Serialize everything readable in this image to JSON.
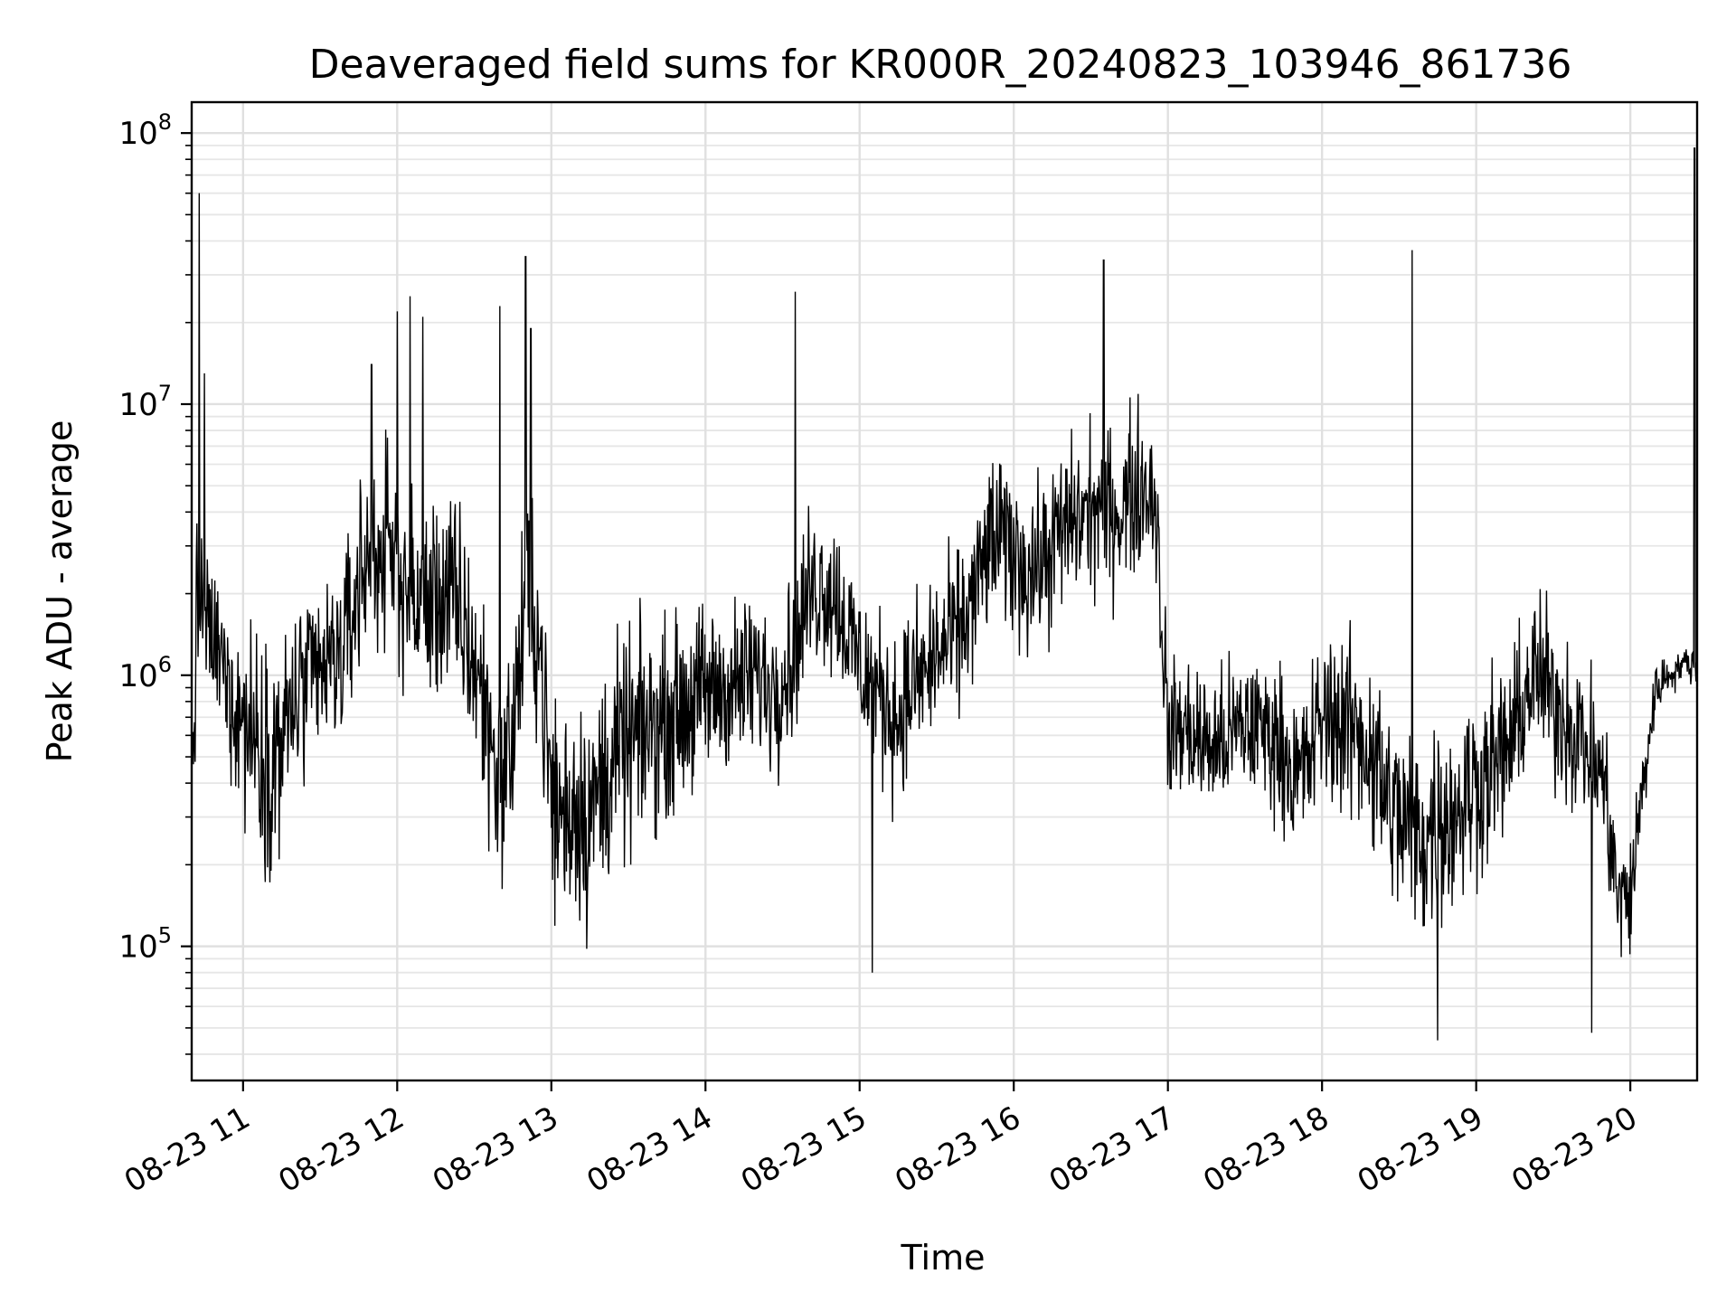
{
  "chart_data": {
    "type": "line",
    "title": "Deaveraged field sums for KR000R_20240823_103946_861736",
    "xlabel": "Time",
    "ylabel": "Peak ADU - average",
    "yscale": "log",
    "ylim": [
      32000,
      130000000
    ],
    "xlim": [
      "2024-08-23 10:40",
      "2024-08-23 20:26"
    ],
    "grid": true,
    "line_color": "#000000",
    "x_tick_labels": [
      "08-23 11",
      "08-23 12",
      "08-23 13",
      "08-23 14",
      "08-23 15",
      "08-23 16",
      "08-23 17",
      "08-23 18",
      "08-23 19",
      "08-23 20"
    ],
    "y_tick_labels": [
      {
        "base": "10",
        "exp": "5",
        "value": 100000
      },
      {
        "base": "10",
        "exp": "6",
        "value": 1000000
      },
      {
        "base": "10",
        "exp": "7",
        "value": 10000000
      },
      {
        "base": "10",
        "exp": "8",
        "value": 100000000
      }
    ],
    "series": [
      {
        "x": [
          "2024-08-23 10:40",
          "2024-08-23 10:42",
          "2024-08-23 10:44",
          "2024-08-23 10:46",
          "2024-08-23 10:50",
          "2024-08-23 10:55",
          "2024-08-23 11:00",
          "2024-08-23 11:05",
          "2024-08-23 11:10",
          "2024-08-23 11:15",
          "2024-08-23 11:20",
          "2024-08-23 11:25",
          "2024-08-23 11:30",
          "2024-08-23 11:35",
          "2024-08-23 11:40",
          "2024-08-23 11:45",
          "2024-08-23 11:50",
          "2024-08-23 11:55",
          "2024-08-23 12:00",
          "2024-08-23 12:05",
          "2024-08-23 12:10",
          "2024-08-23 12:15",
          "2024-08-23 12:20",
          "2024-08-23 12:25",
          "2024-08-23 12:30",
          "2024-08-23 12:35",
          "2024-08-23 12:40",
          "2024-08-23 12:45",
          "2024-08-23 12:50",
          "2024-08-23 12:55",
          "2024-08-23 13:00",
          "2024-08-23 13:05",
          "2024-08-23 13:10",
          "2024-08-23 13:15",
          "2024-08-23 13:20",
          "2024-08-23 13:25",
          "2024-08-23 13:30",
          "2024-08-23 13:35",
          "2024-08-23 13:40",
          "2024-08-23 13:45",
          "2024-08-23 13:50",
          "2024-08-23 13:55",
          "2024-08-23 14:00",
          "2024-08-23 14:05",
          "2024-08-23 14:10",
          "2024-08-23 14:15",
          "2024-08-23 14:20",
          "2024-08-23 14:25",
          "2024-08-23 14:30",
          "2024-08-23 14:35",
          "2024-08-23 14:40",
          "2024-08-23 14:45",
          "2024-08-23 14:50",
          "2024-08-23 14:55",
          "2024-08-23 15:00",
          "2024-08-23 15:05",
          "2024-08-23 15:10",
          "2024-08-23 15:15",
          "2024-08-23 15:20",
          "2024-08-23 15:25",
          "2024-08-23 15:30",
          "2024-08-23 15:35",
          "2024-08-23 15:40",
          "2024-08-23 15:45",
          "2024-08-23 15:50",
          "2024-08-23 15:55",
          "2024-08-23 16:00",
          "2024-08-23 16:05",
          "2024-08-23 16:10",
          "2024-08-23 16:15",
          "2024-08-23 16:20",
          "2024-08-23 16:25",
          "2024-08-23 16:30",
          "2024-08-23 16:35",
          "2024-08-23 16:40",
          "2024-08-23 16:45",
          "2024-08-23 16:50",
          "2024-08-23 16:55",
          "2024-08-23 17:00",
          "2024-08-23 17:05",
          "2024-08-23 17:10",
          "2024-08-23 17:15",
          "2024-08-23 17:20",
          "2024-08-23 17:25",
          "2024-08-23 17:30",
          "2024-08-23 17:35",
          "2024-08-23 17:40",
          "2024-08-23 17:45",
          "2024-08-23 17:50",
          "2024-08-23 17:55",
          "2024-08-23 18:00",
          "2024-08-23 18:05",
          "2024-08-23 18:10",
          "2024-08-23 18:15",
          "2024-08-23 18:20",
          "2024-08-23 18:25",
          "2024-08-23 18:30",
          "2024-08-23 18:35",
          "2024-08-23 18:40",
          "2024-08-23 18:45",
          "2024-08-23 18:50",
          "2024-08-23 18:55",
          "2024-08-23 19:00",
          "2024-08-23 19:05",
          "2024-08-23 19:10",
          "2024-08-23 19:15",
          "2024-08-23 19:20",
          "2024-08-23 19:25",
          "2024-08-23 19:30",
          "2024-08-23 19:35",
          "2024-08-23 19:40",
          "2024-08-23 19:45",
          "2024-08-23 19:50",
          "2024-08-23 19:55",
          "2024-08-23 20:00",
          "2024-08-23 20:05",
          "2024-08-23 20:10",
          "2024-08-23 20:15",
          "2024-08-23 20:20",
          "2024-08-23 20:25"
        ],
        "baseline": [
          400000,
          1500000,
          2000000,
          1500000,
          1200000,
          900000,
          700000,
          600000,
          500000,
          550000,
          800000,
          900000,
          1000000,
          1100000,
          1300000,
          2200000,
          3000000,
          2800000,
          2500000,
          2000000,
          1800000,
          1900000,
          2000000,
          1600000,
          1100000,
          700000,
          400000,
          600000,
          2000000,
          1500000,
          350000,
          300000,
          350000,
          300000,
          400000,
          500000,
          550000,
          600000,
          650000,
          700000,
          750000,
          800000,
          850000,
          900000,
          900000,
          950000,
          1000000,
          900000,
          1000000,
          1300000,
          2000000,
          2200000,
          2000000,
          1500000,
          1100000,
          900000,
          800000,
          700000,
          900000,
          1000000,
          1200000,
          1300000,
          1500000,
          2000000,
          3000000,
          3200000,
          2800000,
          2500000,
          2500000,
          3000000,
          3500000,
          3800000,
          4000000,
          4200000,
          4000000,
          4500000,
          5000000,
          4800000,
          600000,
          650000,
          600000,
          550000,
          550000,
          600000,
          650000,
          650000,
          600000,
          550000,
          400000,
          500000,
          700000,
          700000,
          650000,
          600000,
          500000,
          350000,
          300000,
          250000,
          250000,
          300000,
          300000,
          350000,
          400000,
          450000,
          500000,
          600000,
          900000,
          1000000,
          800000,
          700000,
          600000,
          500000,
          400000,
          150000,
          150000,
          400000,
          900000,
          1000000,
          1100000,
          1100000,
          1100000,
          1100000
        ],
        "noise_decades": [
          0.7,
          0.5,
          0.4,
          0.4,
          0.4,
          0.5,
          0.55,
          0.6,
          0.6,
          0.6,
          0.55,
          0.5,
          0.5,
          0.5,
          0.5,
          0.55,
          0.55,
          0.55,
          0.55,
          0.55,
          0.55,
          0.55,
          0.55,
          0.6,
          0.6,
          0.6,
          0.55,
          0.55,
          0.6,
          0.6,
          0.6,
          0.65,
          0.65,
          0.65,
          0.6,
          0.6,
          0.6,
          0.55,
          0.55,
          0.5,
          0.5,
          0.5,
          0.5,
          0.45,
          0.45,
          0.45,
          0.45,
          0.45,
          0.45,
          0.45,
          0.45,
          0.45,
          0.45,
          0.45,
          0.45,
          0.45,
          0.45,
          0.45,
          0.45,
          0.45,
          0.45,
          0.45,
          0.45,
          0.45,
          0.45,
          0.45,
          0.45,
          0.45,
          0.45,
          0.45,
          0.45,
          0.45,
          0.45,
          0.45,
          0.45,
          0.45,
          0.45,
          0.45,
          0.4,
          0.4,
          0.4,
          0.4,
          0.4,
          0.4,
          0.4,
          0.4,
          0.4,
          0.4,
          0.45,
          0.45,
          0.45,
          0.5,
          0.5,
          0.5,
          0.55,
          0.55,
          0.55,
          0.55,
          0.55,
          0.55,
          0.55,
          0.55,
          0.5,
          0.5,
          0.5,
          0.45,
          0.45,
          0.45,
          0.45,
          0.45,
          0.45,
          0.45,
          0.4,
          0.35,
          0.35,
          0.3,
          0.15,
          0.1,
          0.1,
          0.1,
          0.1,
          0.1
        ],
        "spikes": [
          {
            "x": "2024-08-23 10:43",
            "y": 60000000
          },
          {
            "x": "2024-08-23 10:45",
            "y": 13000000
          },
          {
            "x": "2024-08-23 11:50",
            "y": 14000000
          },
          {
            "x": "2024-08-23 12:00",
            "y": 22000000
          },
          {
            "x": "2024-08-23 12:05",
            "y": 25000000
          },
          {
            "x": "2024-08-23 12:10",
            "y": 21000000
          },
          {
            "x": "2024-08-23 12:40",
            "y": 23000000
          },
          {
            "x": "2024-08-23 12:50",
            "y": 35000000
          },
          {
            "x": "2024-08-23 12:52",
            "y": 19000000
          },
          {
            "x": "2024-08-23 14:35",
            "y": 26000000
          },
          {
            "x": "2024-08-23 15:05",
            "y": 80000
          },
          {
            "x": "2024-08-23 16:35",
            "y": 34000000
          },
          {
            "x": "2024-08-23 18:35",
            "y": 37000000
          },
          {
            "x": "2024-08-23 18:45",
            "y": 45000
          },
          {
            "x": "2024-08-23 19:45",
            "y": 48000
          },
          {
            "x": "2024-08-23 20:25",
            "y": 88000000
          }
        ]
      }
    ]
  }
}
